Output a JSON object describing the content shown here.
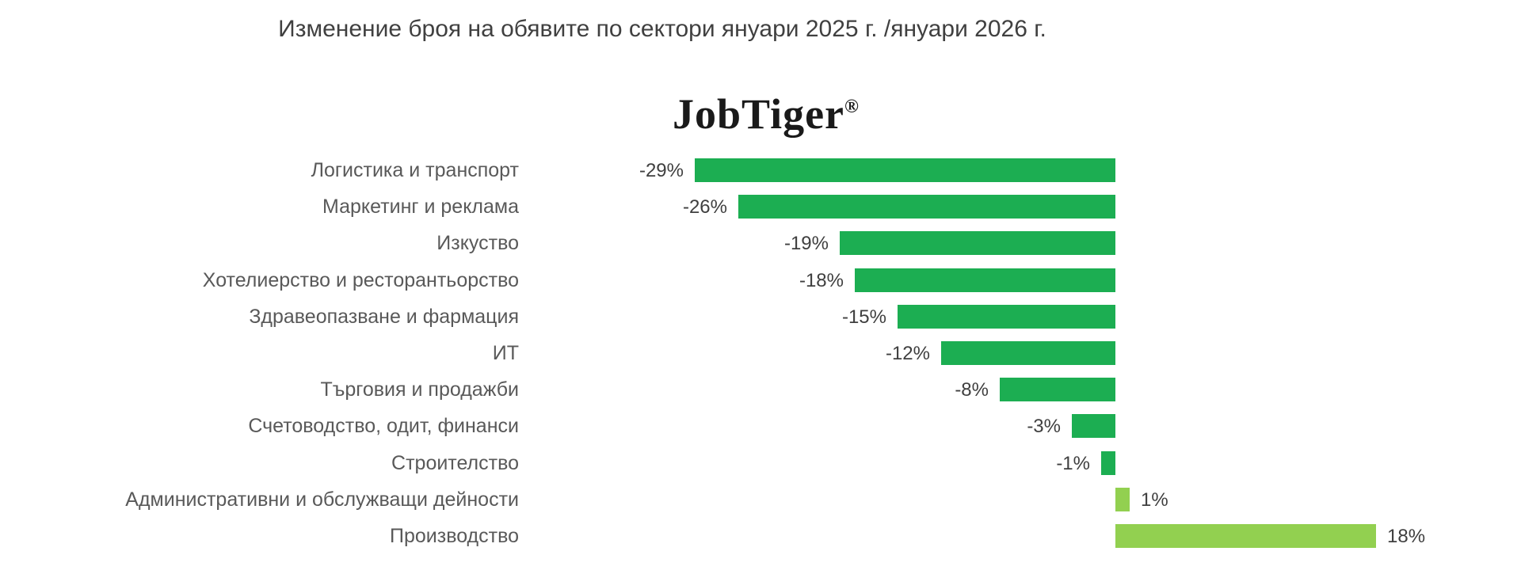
{
  "page": {
    "title": "Изменение броя на обявите по сектори януари 2025 г. /януари 2026 г.",
    "logo_text": "JobTiger",
    "logo_registered_mark": "®"
  },
  "colors": {
    "background": "#ffffff",
    "negative_bar": "#1cae52",
    "positive_bar": "#92d050",
    "title_text": "#404040",
    "category_label_text": "#595959",
    "value_label_text": "#3f3f3f"
  },
  "chart_data": {
    "type": "bar",
    "orientation": "horizontal",
    "title": "Изменение броя на обявите по сектори януари 2025 г. /януари 2026 г.",
    "subtitle_logo": "JobTiger®",
    "categories": [
      "Логистика и транспорт",
      "Маркетинг и реклама",
      "Изкуство",
      "Хотелиерство и ресторантьорство",
      "Здравеопазване и фармация",
      "ИТ",
      "Търговия и продажби",
      "Счетоводство, одит, финанси",
      "Строителство",
      "Административни и обслужващи дейности",
      "Производство"
    ],
    "values": [
      -29,
      -26,
      -19,
      -18,
      -15,
      -12,
      -8,
      -3,
      -1,
      1,
      18
    ],
    "value_labels": [
      "-29%",
      "-26%",
      "-19%",
      "-18%",
      "-15%",
      "-12%",
      "-8%",
      "-3%",
      "-1%",
      "1%",
      "18%"
    ],
    "unit": "%",
    "xlabel": "",
    "ylabel": "",
    "xlim": [
      -40,
      28
    ],
    "grid": false,
    "legend": null,
    "data_labels": "outside-end",
    "bar_colors_rule": "negative values dark green, positive values light green"
  }
}
